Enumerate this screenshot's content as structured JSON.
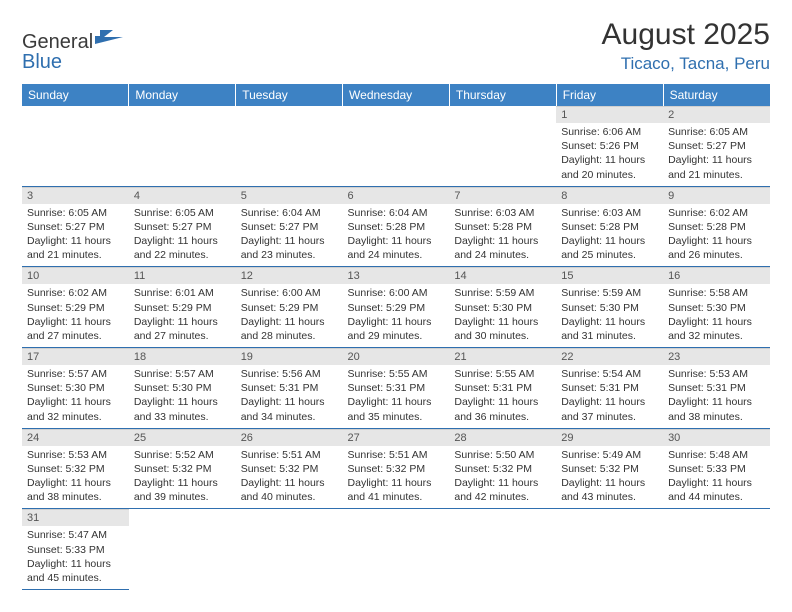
{
  "logo": {
    "text1": "General",
    "text2": "Blue"
  },
  "title": "August 2025",
  "location": "Ticaco, Tacna, Peru",
  "colors": {
    "header_bg": "#3d82c4",
    "header_fg": "#ffffff",
    "accent": "#2f6faf",
    "daynum_bg": "#e6e6e6",
    "text": "#333333"
  },
  "weekdays": [
    "Sunday",
    "Monday",
    "Tuesday",
    "Wednesday",
    "Thursday",
    "Friday",
    "Saturday"
  ],
  "leading_blanks": 5,
  "days": [
    {
      "n": 1,
      "sunrise": "6:06 AM",
      "sunset": "5:26 PM",
      "daylight": "11 hours and 20 minutes."
    },
    {
      "n": 2,
      "sunrise": "6:05 AM",
      "sunset": "5:27 PM",
      "daylight": "11 hours and 21 minutes."
    },
    {
      "n": 3,
      "sunrise": "6:05 AM",
      "sunset": "5:27 PM",
      "daylight": "11 hours and 21 minutes."
    },
    {
      "n": 4,
      "sunrise": "6:05 AM",
      "sunset": "5:27 PM",
      "daylight": "11 hours and 22 minutes."
    },
    {
      "n": 5,
      "sunrise": "6:04 AM",
      "sunset": "5:27 PM",
      "daylight": "11 hours and 23 minutes."
    },
    {
      "n": 6,
      "sunrise": "6:04 AM",
      "sunset": "5:28 PM",
      "daylight": "11 hours and 24 minutes."
    },
    {
      "n": 7,
      "sunrise": "6:03 AM",
      "sunset": "5:28 PM",
      "daylight": "11 hours and 24 minutes."
    },
    {
      "n": 8,
      "sunrise": "6:03 AM",
      "sunset": "5:28 PM",
      "daylight": "11 hours and 25 minutes."
    },
    {
      "n": 9,
      "sunrise": "6:02 AM",
      "sunset": "5:28 PM",
      "daylight": "11 hours and 26 minutes."
    },
    {
      "n": 10,
      "sunrise": "6:02 AM",
      "sunset": "5:29 PM",
      "daylight": "11 hours and 27 minutes."
    },
    {
      "n": 11,
      "sunrise": "6:01 AM",
      "sunset": "5:29 PM",
      "daylight": "11 hours and 27 minutes."
    },
    {
      "n": 12,
      "sunrise": "6:00 AM",
      "sunset": "5:29 PM",
      "daylight": "11 hours and 28 minutes."
    },
    {
      "n": 13,
      "sunrise": "6:00 AM",
      "sunset": "5:29 PM",
      "daylight": "11 hours and 29 minutes."
    },
    {
      "n": 14,
      "sunrise": "5:59 AM",
      "sunset": "5:30 PM",
      "daylight": "11 hours and 30 minutes."
    },
    {
      "n": 15,
      "sunrise": "5:59 AM",
      "sunset": "5:30 PM",
      "daylight": "11 hours and 31 minutes."
    },
    {
      "n": 16,
      "sunrise": "5:58 AM",
      "sunset": "5:30 PM",
      "daylight": "11 hours and 32 minutes."
    },
    {
      "n": 17,
      "sunrise": "5:57 AM",
      "sunset": "5:30 PM",
      "daylight": "11 hours and 32 minutes."
    },
    {
      "n": 18,
      "sunrise": "5:57 AM",
      "sunset": "5:30 PM",
      "daylight": "11 hours and 33 minutes."
    },
    {
      "n": 19,
      "sunrise": "5:56 AM",
      "sunset": "5:31 PM",
      "daylight": "11 hours and 34 minutes."
    },
    {
      "n": 20,
      "sunrise": "5:55 AM",
      "sunset": "5:31 PM",
      "daylight": "11 hours and 35 minutes."
    },
    {
      "n": 21,
      "sunrise": "5:55 AM",
      "sunset": "5:31 PM",
      "daylight": "11 hours and 36 minutes."
    },
    {
      "n": 22,
      "sunrise": "5:54 AM",
      "sunset": "5:31 PM",
      "daylight": "11 hours and 37 minutes."
    },
    {
      "n": 23,
      "sunrise": "5:53 AM",
      "sunset": "5:31 PM",
      "daylight": "11 hours and 38 minutes."
    },
    {
      "n": 24,
      "sunrise": "5:53 AM",
      "sunset": "5:32 PM",
      "daylight": "11 hours and 38 minutes."
    },
    {
      "n": 25,
      "sunrise": "5:52 AM",
      "sunset": "5:32 PM",
      "daylight": "11 hours and 39 minutes."
    },
    {
      "n": 26,
      "sunrise": "5:51 AM",
      "sunset": "5:32 PM",
      "daylight": "11 hours and 40 minutes."
    },
    {
      "n": 27,
      "sunrise": "5:51 AM",
      "sunset": "5:32 PM",
      "daylight": "11 hours and 41 minutes."
    },
    {
      "n": 28,
      "sunrise": "5:50 AM",
      "sunset": "5:32 PM",
      "daylight": "11 hours and 42 minutes."
    },
    {
      "n": 29,
      "sunrise": "5:49 AM",
      "sunset": "5:32 PM",
      "daylight": "11 hours and 43 minutes."
    },
    {
      "n": 30,
      "sunrise": "5:48 AM",
      "sunset": "5:33 PM",
      "daylight": "11 hours and 44 minutes."
    },
    {
      "n": 31,
      "sunrise": "5:47 AM",
      "sunset": "5:33 PM",
      "daylight": "11 hours and 45 minutes."
    }
  ],
  "labels": {
    "sunrise": "Sunrise:",
    "sunset": "Sunset:",
    "daylight": "Daylight:"
  }
}
